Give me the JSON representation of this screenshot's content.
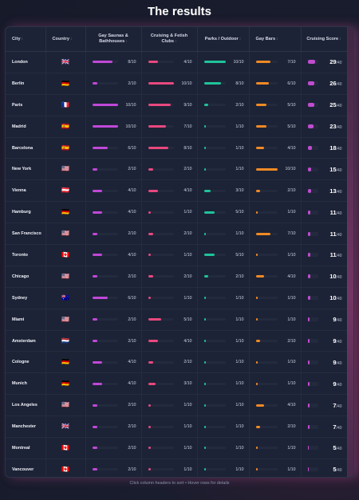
{
  "title": "The results",
  "footer": "Click column headers to sort • Hover rows for details",
  "headers": {
    "city": "City",
    "country": "Country",
    "saunas": "Gay Saunas & Bathhouses",
    "cruising": "Cruising & Fetish Clubs",
    "parks": "Parks / Outdoor",
    "bars": "Gay Bars",
    "score": "Cruising Score"
  },
  "sort_icon": "↕",
  "colors": {
    "saunas": "#c048d8",
    "cruising": "#e8487e",
    "parks": "#1fc39a",
    "bars": "#f08a24",
    "score": "#c04cd0"
  },
  "max_metric": "10",
  "max_total": "40",
  "rows": [
    {
      "city": "London",
      "flag": "🇬🇧",
      "saunas": "8",
      "cruising": "4",
      "parks": "10",
      "bars": "7",
      "total": "29"
    },
    {
      "city": "Berlin",
      "flag": "🇩🇪",
      "saunas": "2",
      "cruising": "10",
      "parks": "8",
      "bars": "6",
      "total": "26"
    },
    {
      "city": "Paris",
      "flag": "🇫🇷",
      "saunas": "10",
      "cruising": "9",
      "parks": "2",
      "bars": "5",
      "total": "25"
    },
    {
      "city": "Madrid",
      "flag": "🇪🇸",
      "saunas": "10",
      "cruising": "7",
      "parks": "1",
      "bars": "5",
      "total": "23"
    },
    {
      "city": "Barcelona",
      "flag": "🇪🇸",
      "saunas": "6",
      "cruising": "8",
      "parks": "1",
      "bars": "4",
      "total": "18"
    },
    {
      "city": "New York",
      "flag": "🇺🇸",
      "saunas": "2",
      "cruising": "2",
      "parks": "1",
      "bars": "10",
      "total": "15"
    },
    {
      "city": "Vienna",
      "flag": "🇦🇹",
      "saunas": "4",
      "cruising": "4",
      "parks": "3",
      "bars": "2",
      "total": "13"
    },
    {
      "city": "Hamburg",
      "flag": "🇩🇪",
      "saunas": "4",
      "cruising": "1",
      "parks": "5",
      "bars": "1",
      "total": "11"
    },
    {
      "city": "San Francisco",
      "flag": "🇺🇸",
      "saunas": "2",
      "cruising": "2",
      "parks": "1",
      "bars": "7",
      "total": "11"
    },
    {
      "city": "Toronto",
      "flag": "🇨🇦",
      "saunas": "4",
      "cruising": "1",
      "parks": "5",
      "bars": "1",
      "total": "11"
    },
    {
      "city": "Chicago",
      "flag": "🇺🇸",
      "saunas": "2",
      "cruising": "2",
      "parks": "2",
      "bars": "4",
      "total": "10"
    },
    {
      "city": "Sydney",
      "flag": "🇦🇺",
      "saunas": "6",
      "cruising": "1",
      "parks": "1",
      "bars": "1",
      "total": "10"
    },
    {
      "city": "Miami",
      "flag": "🇺🇸",
      "saunas": "2",
      "cruising": "5",
      "parks": "1",
      "bars": "1",
      "total": "9"
    },
    {
      "city": "Amsterdam",
      "flag": "🇳🇱",
      "saunas": "2",
      "cruising": "4",
      "parks": "1",
      "bars": "2",
      "total": "9"
    },
    {
      "city": "Cologne",
      "flag": "🇩🇪",
      "saunas": "4",
      "cruising": "2",
      "parks": "1",
      "bars": "1",
      "total": "9"
    },
    {
      "city": "Munich",
      "flag": "🇩🇪",
      "saunas": "4",
      "cruising": "3",
      "parks": "1",
      "bars": "1",
      "total": "9"
    },
    {
      "city": "Los Angeles",
      "flag": "🇺🇸",
      "saunas": "2",
      "cruising": "1",
      "parks": "1",
      "bars": "4",
      "total": "7"
    },
    {
      "city": "Manchester",
      "flag": "🇬🇧",
      "saunas": "2",
      "cruising": "1",
      "parks": "1",
      "bars": "2",
      "total": "7"
    },
    {
      "city": "Montreal",
      "flag": "🇨🇦",
      "saunas": "2",
      "cruising": "1",
      "parks": "1",
      "bars": "1",
      "total": "5"
    },
    {
      "city": "Vancouver",
      "flag": "🇨🇦",
      "saunas": "2",
      "cruising": "1",
      "parks": "1",
      "bars": "1",
      "total": "5"
    }
  ]
}
